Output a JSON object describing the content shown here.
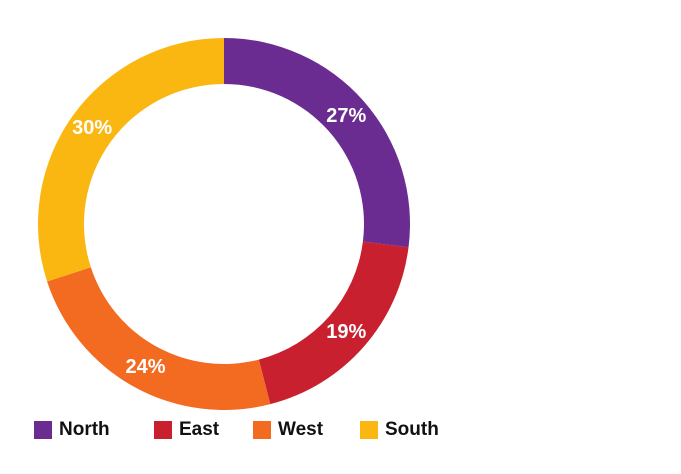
{
  "chart_data": {
    "type": "pie",
    "style": "donut",
    "categories": [
      "North",
      "East",
      "West",
      "South"
    ],
    "values": [
      27,
      19,
      24,
      30
    ],
    "labels": [
      "27%",
      "19%",
      "24%",
      "30%"
    ],
    "colors": [
      "#6a2c91",
      "#c8202f",
      "#f26b21",
      "#fbb711"
    ],
    "legend": "bottom",
    "start_angle_deg": 0,
    "direction": "clockwise"
  }
}
